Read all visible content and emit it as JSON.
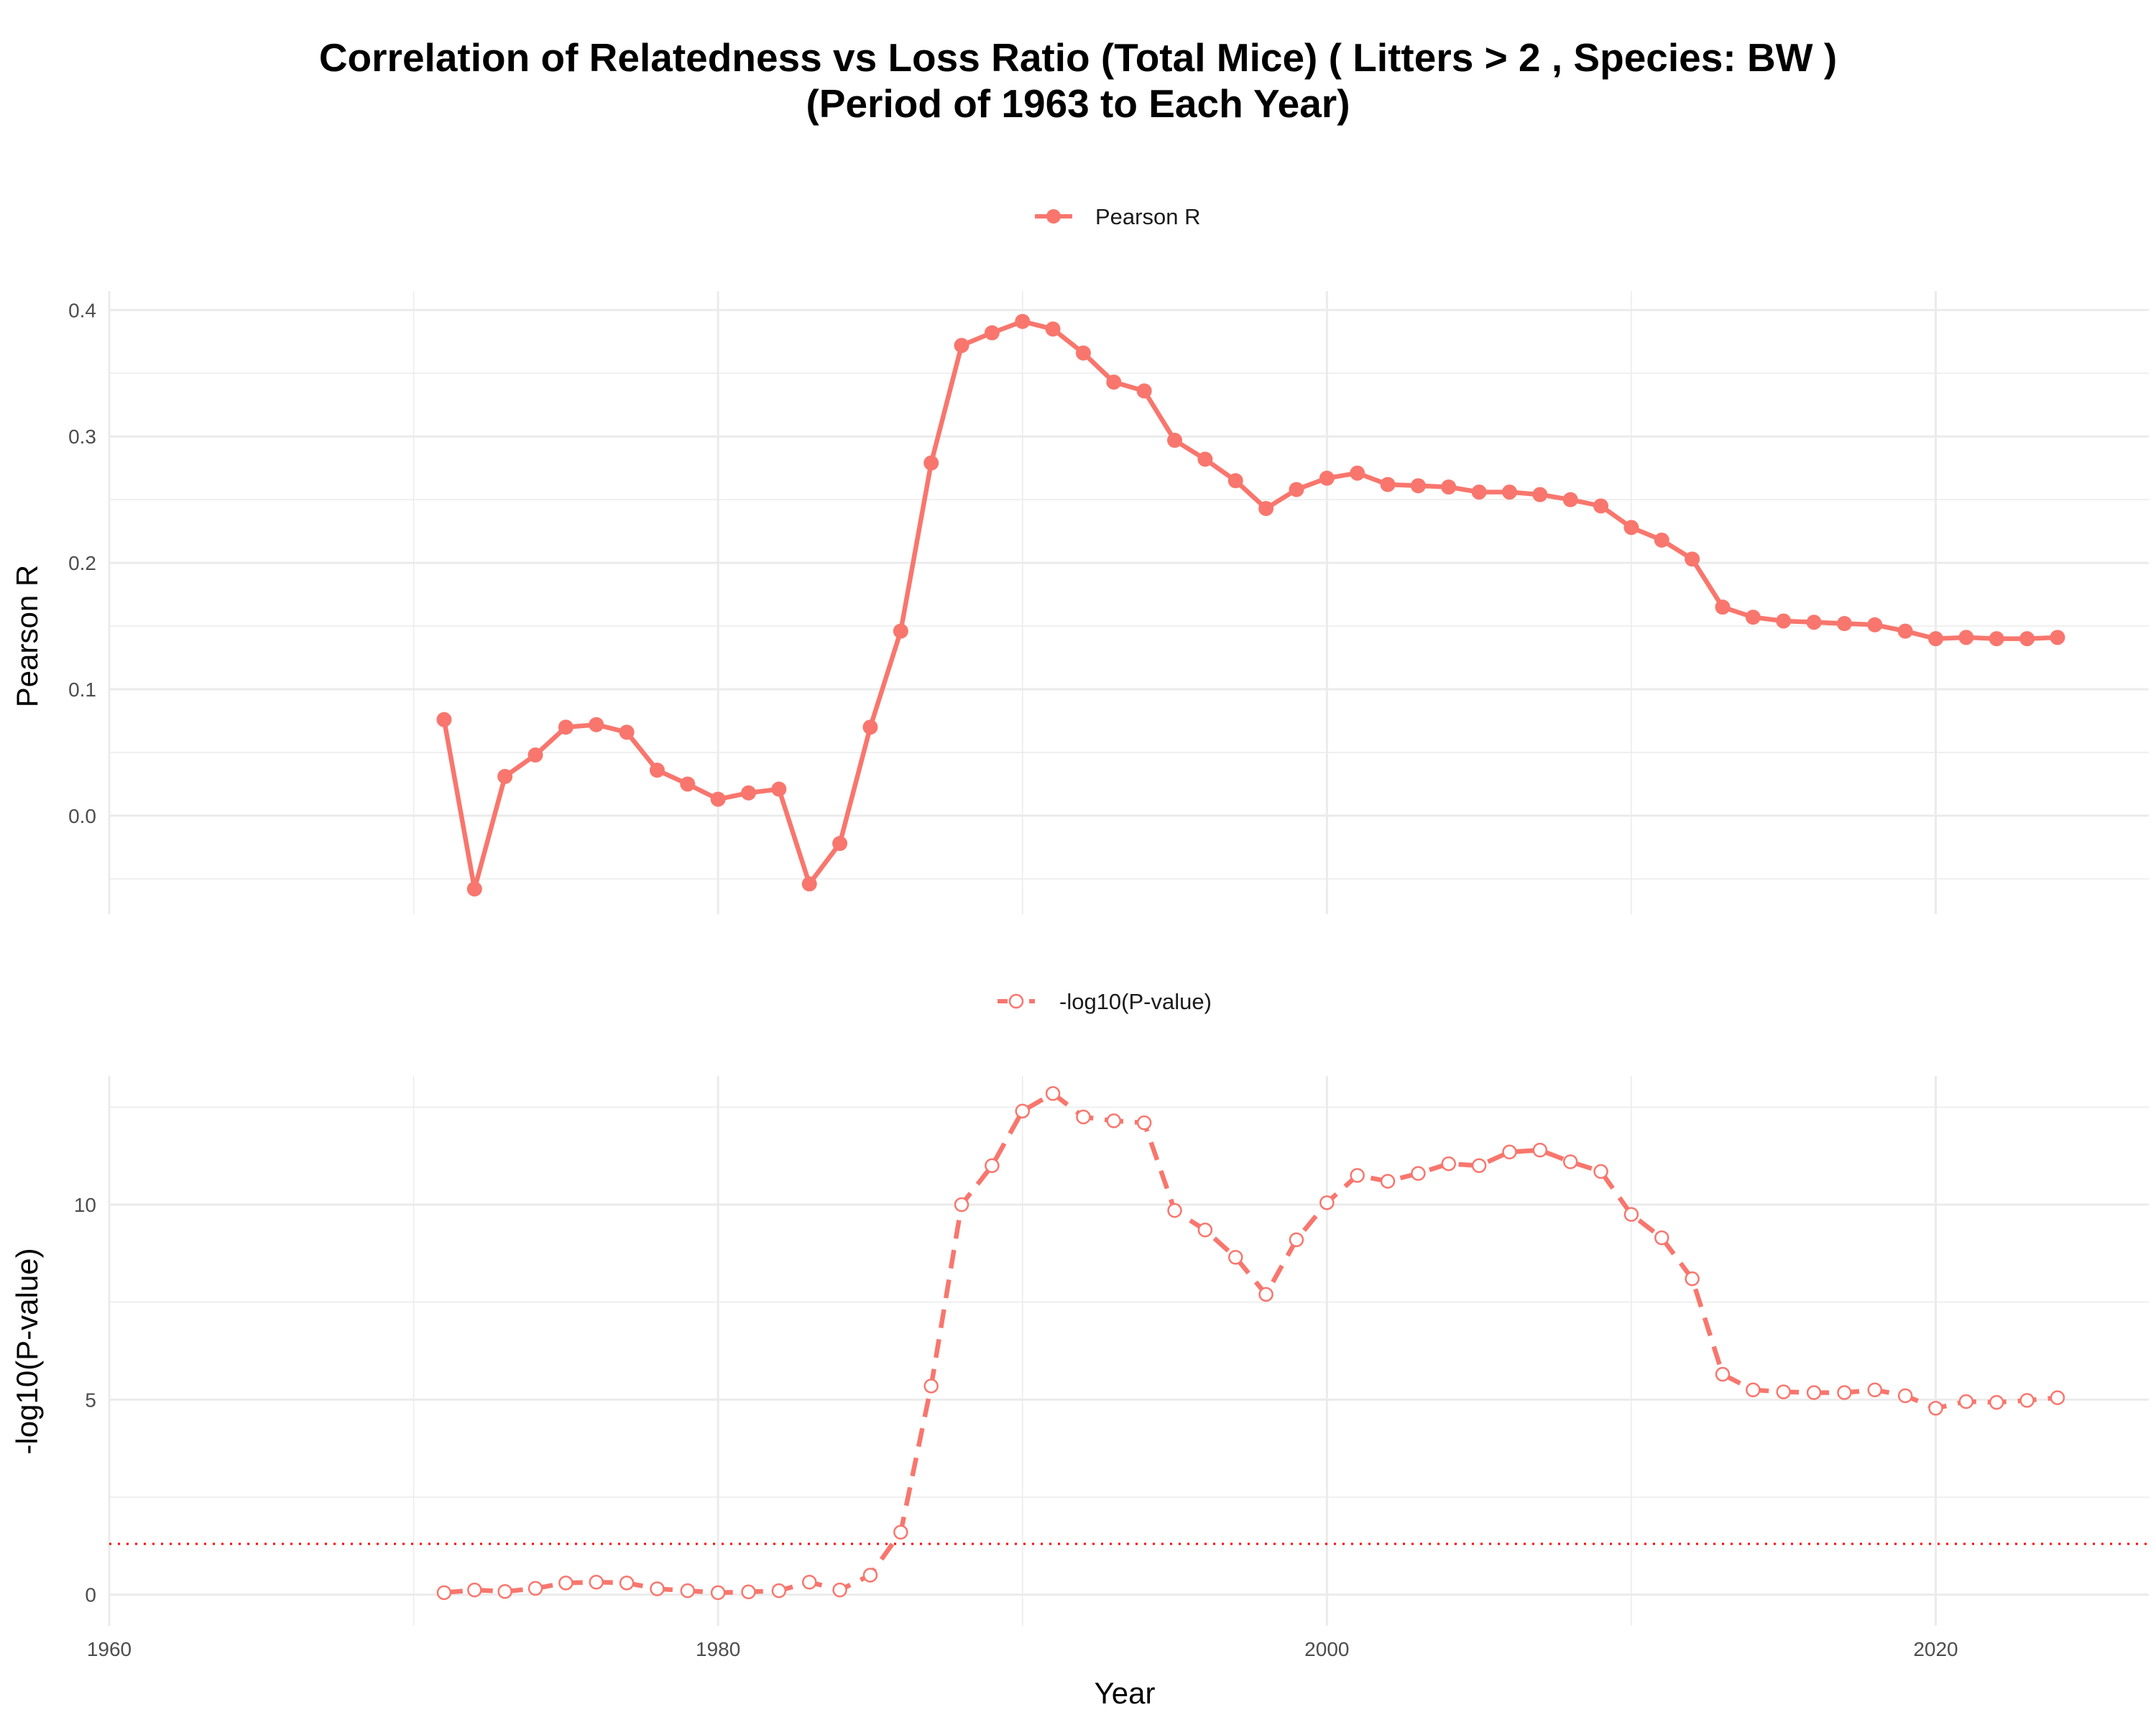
{
  "title_line1": "Correlation of Relatedness vs Loss Ratio (Total Mice) ( Litters > 2 , Species: BW )",
  "title_line2": "(Period of 1963 to Each Year)",
  "colors": {
    "series": "#f8766d",
    "threshold": "#ff0000",
    "grid": "#ebebeb"
  },
  "chart_data": [
    {
      "type": "line",
      "legend": "Pearson R",
      "ylabel": "Pearson R",
      "xlim": [
        1960,
        2027
      ],
      "ylim": [
        -0.078,
        0.415
      ],
      "xticks": [
        1960,
        1980,
        2000,
        2020
      ],
      "yticks": [
        0.0,
        0.1,
        0.2,
        0.3,
        0.4
      ],
      "ytick_labels": [
        "0.0",
        "0.1",
        "0.2",
        "0.3",
        "0.4"
      ],
      "grid": true,
      "marker": "filled-circle",
      "line_style": "solid",
      "x": [
        1971,
        1972,
        1973,
        1974,
        1975,
        1976,
        1977,
        1978,
        1979,
        1980,
        1981,
        1982,
        1983,
        1984,
        1985,
        1986,
        1987,
        1988,
        1989,
        1990,
        1991,
        1992,
        1993,
        1994,
        1995,
        1996,
        1997,
        1998,
        1999,
        2000,
        2001,
        2002,
        2003,
        2004,
        2005,
        2006,
        2007,
        2008,
        2009,
        2010,
        2011,
        2012,
        2013,
        2014,
        2015,
        2016,
        2017,
        2018,
        2019,
        2020,
        2021,
        2022,
        2023,
        2024
      ],
      "values": [
        0.076,
        -0.058,
        0.031,
        0.048,
        0.07,
        0.072,
        0.066,
        0.036,
        0.025,
        0.013,
        0.018,
        0.021,
        -0.054,
        -0.022,
        0.07,
        0.146,
        0.279,
        0.372,
        0.382,
        0.391,
        0.385,
        0.366,
        0.343,
        0.336,
        0.297,
        0.282,
        0.265,
        0.243,
        0.258,
        0.267,
        0.271,
        0.262,
        0.261,
        0.26,
        0.256,
        0.256,
        0.254,
        0.25,
        0.245,
        0.228,
        0.218,
        0.203,
        0.165,
        0.157,
        0.154,
        0.153,
        0.152,
        0.151,
        0.146,
        0.14,
        0.141,
        0.14,
        0.14,
        0.141
      ]
    },
    {
      "type": "line",
      "legend": "-log10(P-value)",
      "xlabel": "Year",
      "ylabel": "-log10(P-value)",
      "xlim": [
        1960,
        2027
      ],
      "ylim": [
        -0.8,
        13.3
      ],
      "xticks": [
        1960,
        1980,
        2000,
        2020
      ],
      "yticks": [
        0,
        5,
        10
      ],
      "ytick_labels": [
        "0",
        "5",
        "10"
      ],
      "grid": true,
      "marker": "open-circle",
      "line_style": "dashed",
      "threshold_line": {
        "y": 1.301,
        "style": "dotted"
      },
      "x": [
        1971,
        1972,
        1973,
        1974,
        1975,
        1976,
        1977,
        1978,
        1979,
        1980,
        1981,
        1982,
        1983,
        1984,
        1985,
        1986,
        1987,
        1988,
        1989,
        1990,
        1991,
        1992,
        1993,
        1994,
        1995,
        1996,
        1997,
        1998,
        1999,
        2000,
        2001,
        2002,
        2003,
        2004,
        2005,
        2006,
        2007,
        2008,
        2009,
        2010,
        2011,
        2012,
        2013,
        2014,
        2015,
        2016,
        2017,
        2018,
        2019,
        2020,
        2021,
        2022,
        2023,
        2024
      ],
      "values": [
        0.05,
        0.12,
        0.08,
        0.16,
        0.3,
        0.32,
        0.3,
        0.15,
        0.1,
        0.05,
        0.07,
        0.1,
        0.32,
        0.12,
        0.5,
        1.6,
        5.35,
        10.0,
        11.0,
        12.4,
        12.85,
        12.25,
        12.15,
        12.1,
        9.85,
        9.35,
        8.65,
        7.7,
        9.1,
        10.05,
        10.75,
        10.6,
        10.8,
        11.05,
        11.0,
        11.35,
        11.4,
        11.1,
        10.85,
        9.75,
        9.15,
        8.1,
        5.65,
        5.25,
        5.2,
        5.18,
        5.18,
        5.25,
        5.1,
        4.78,
        4.95,
        4.93,
        4.98,
        5.05
      ]
    }
  ]
}
